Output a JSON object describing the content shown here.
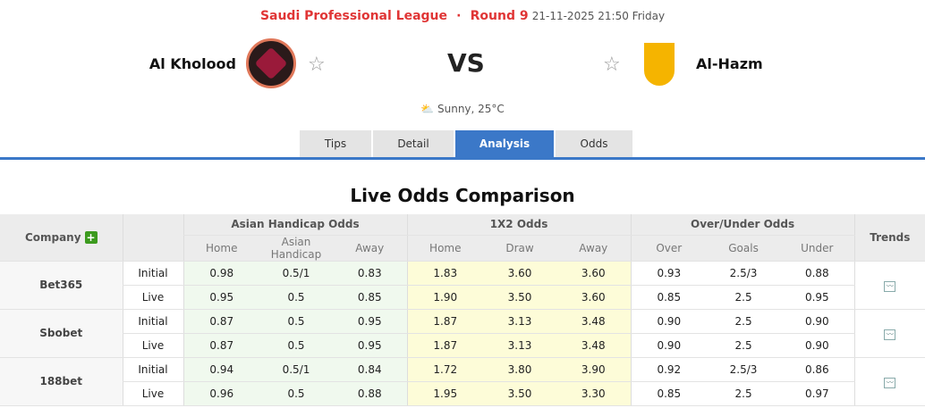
{
  "header": {
    "league": "Saudi Professional League",
    "separator": "·",
    "round": "Round 9",
    "datetime": "21-11-2025 21:50 Friday",
    "home_team": "Al Kholood",
    "away_team": "Al-Hazm",
    "vs": "VS",
    "weather": "Sunny, 25°C",
    "weather_icon": "partly-sunny-icon"
  },
  "tabs": [
    {
      "label": "Tips"
    },
    {
      "label": "Detail"
    },
    {
      "label": "Analysis",
      "active": true
    },
    {
      "label": "Odds"
    }
  ],
  "section_title": "Live Odds Comparison",
  "table": {
    "headers": {
      "company": "Company",
      "asian": "Asian Handicap Odds",
      "x12": "1X2 Odds",
      "ou": "Over/Under Odds",
      "trends": "Trends",
      "sub": [
        "Home",
        "Asian Handicap",
        "Away",
        "Home",
        "Draw",
        "Away",
        "Over",
        "Goals",
        "Under"
      ]
    },
    "rows": [
      {
        "company": "Bet365",
        "lines": [
          {
            "type": "Initial",
            "v": [
              "0.98",
              "0.5/1",
              "0.83",
              "1.83",
              "3.60",
              "3.60",
              "0.93",
              "2.5/3",
              "0.88"
            ]
          },
          {
            "type": "Live",
            "v": [
              "0.95",
              "0.5",
              "0.85",
              "1.90",
              "3.50",
              "3.60",
              "0.85",
              "2.5",
              "0.95"
            ]
          }
        ]
      },
      {
        "company": "Sbobet",
        "lines": [
          {
            "type": "Initial",
            "v": [
              "0.87",
              "0.5",
              "0.95",
              "1.87",
              "3.13",
              "3.48",
              "0.90",
              "2.5",
              "0.90"
            ]
          },
          {
            "type": "Live",
            "v": [
              "0.87",
              "0.5",
              "0.95",
              "1.87",
              "3.13",
              "3.48",
              "0.90",
              "2.5",
              "0.90"
            ]
          }
        ]
      },
      {
        "company": "188bet",
        "lines": [
          {
            "type": "Initial",
            "v": [
              "0.94",
              "0.5/1",
              "0.84",
              "1.72",
              "3.80",
              "3.90",
              "0.92",
              "2.5/3",
              "0.86"
            ]
          },
          {
            "type": "Live",
            "v": [
              "0.96",
              "0.5",
              "0.88",
              "1.95",
              "3.50",
              "3.30",
              "0.85",
              "2.5",
              "0.97"
            ]
          }
        ]
      }
    ]
  },
  "colors": {
    "accent": "#3b78c8",
    "league_red": "#e03535",
    "asian_bg": "#f0f9ee",
    "x12_bg": "#fdfcd8",
    "plus_green": "#3c9a1e"
  }
}
